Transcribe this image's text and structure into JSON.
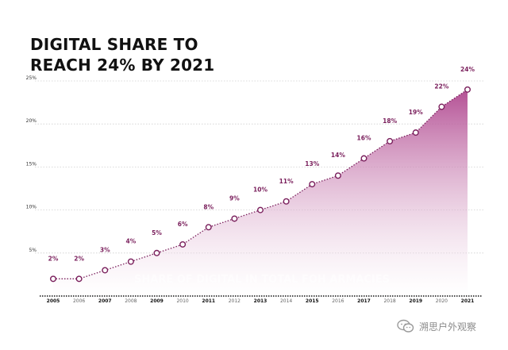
{
  "title": {
    "line1": "DIGITAL SHARE TO",
    "line2": "REACH 24% BY 2021"
  },
  "watermark": {
    "text": "溯思户外观察",
    "icon": "wechat-icon"
  },
  "overlay_text": "SHARE OF DIGITAL IN TOTAL FOH ARMACIES",
  "colors": {
    "line": "#7a1f5c",
    "fill_top": "#b0478f",
    "fill_bottom": "#ffffff",
    "label": "#7a1f5c",
    "grid": "#cfcfcf",
    "axis": "#111111"
  },
  "chart_data": {
    "type": "area",
    "title": "DIGITAL SHARE TO REACH 24% BY 2021",
    "x": [
      "2005",
      "2006",
      "2007",
      "2008",
      "2009",
      "2010",
      "2011",
      "2012",
      "2013",
      "2014",
      "2015",
      "2016",
      "2017",
      "2018",
      "2019",
      "2020",
      "2021"
    ],
    "series": [
      {
        "values": [
          2,
          2,
          3,
          4,
          5,
          6,
          8,
          9,
          10,
          11,
          13,
          14,
          16,
          18,
          19,
          22,
          24
        ],
        "data_labels": [
          "2%",
          "2%",
          "3%",
          "4%",
          "5%",
          "6%",
          "8%",
          "9%",
          "10%",
          "11%",
          "13%",
          "14%",
          "16%",
          "18%",
          "19%",
          "22%",
          "24%"
        ]
      }
    ],
    "y_ticks": [
      5,
      10,
      15,
      20,
      25
    ],
    "y_tick_labels": [
      "5%",
      "10%",
      "15%",
      "20%",
      "25%"
    ],
    "bold_years": [
      "2005",
      "2007",
      "2009",
      "2011",
      "2013",
      "2015",
      "2017",
      "2019",
      "2021"
    ],
    "ylim": [
      0,
      25
    ],
    "grid": true,
    "xlabel": "",
    "ylabel": ""
  }
}
